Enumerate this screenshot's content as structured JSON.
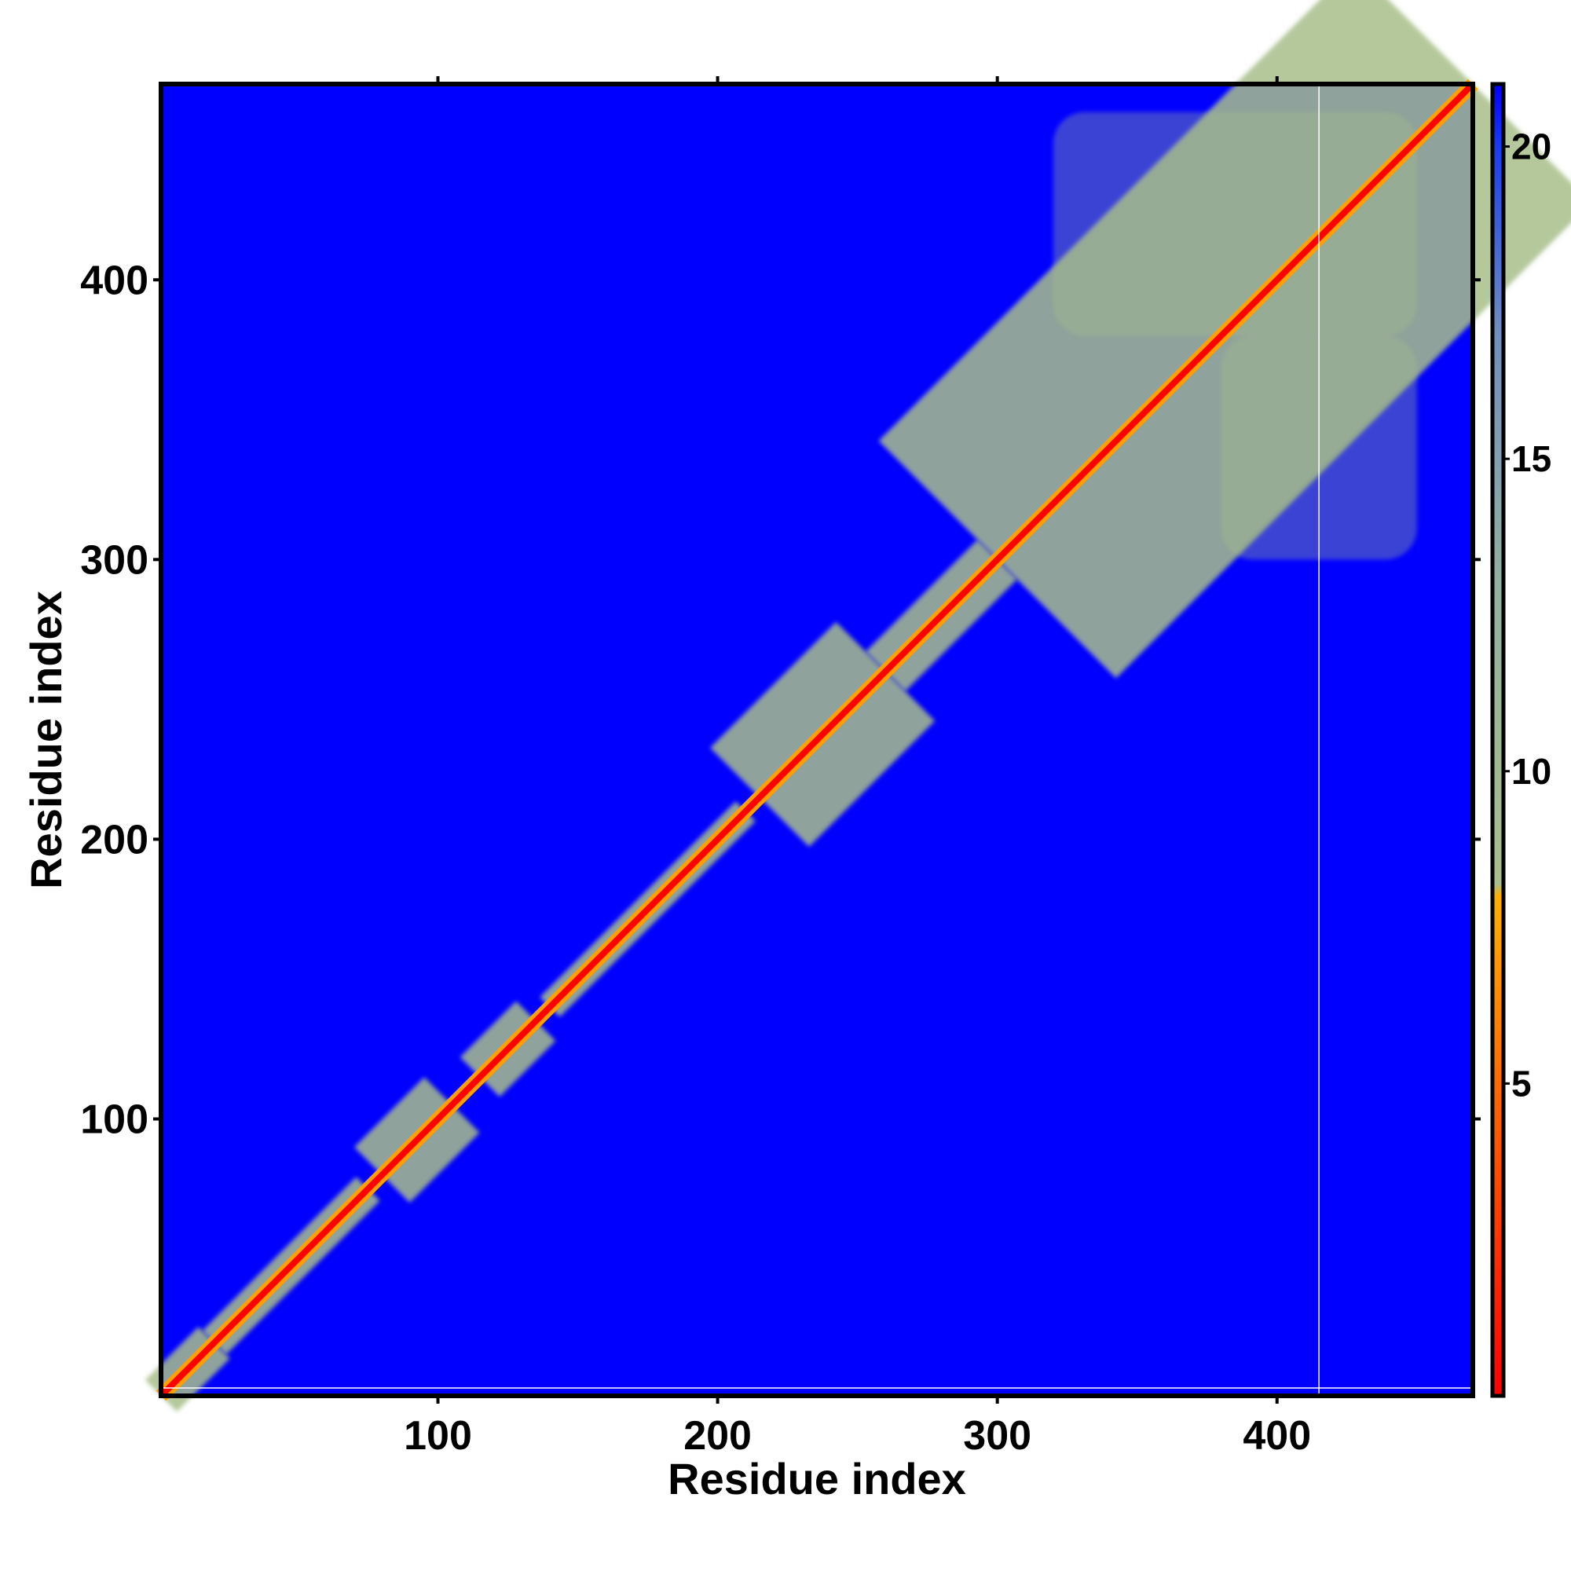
{
  "chart_data": {
    "type": "heatmap",
    "xlabel": "Residue index",
    "ylabel": "Residue index",
    "xlim": [
      1,
      470
    ],
    "ylim": [
      1,
      470
    ],
    "x_ticks": [
      100,
      200,
      300,
      400
    ],
    "y_ticks": [
      100,
      200,
      300,
      400
    ],
    "x_tick_labels": [
      "100",
      "200",
      "300",
      "400"
    ],
    "y_tick_labels": [
      "100",
      "200",
      "300",
      "400"
    ],
    "colorbar": {
      "range": [
        0,
        21
      ],
      "ticks": [
        5,
        10,
        15,
        20
      ],
      "tick_labels": [
        "5",
        "10",
        "15",
        "20"
      ],
      "stops": [
        {
          "value": 0,
          "color": "#ff0000"
        },
        {
          "value": 5,
          "color": "#ff6a00"
        },
        {
          "value": 8,
          "color": "#ffae00"
        },
        {
          "value": 8.2,
          "color": "#a8bf8a"
        },
        {
          "value": 13,
          "color": "#94b0a0"
        },
        {
          "value": 17,
          "color": "#6f8fbf"
        },
        {
          "value": 20,
          "color": "#1a3cf0"
        },
        {
          "value": 21,
          "color": "#0000ff"
        }
      ]
    },
    "background_color": "#0000ff",
    "diagonal_band": {
      "core_color": "#ff0000",
      "halo_color": "#ffa000",
      "contact_color": "#a8bf8a"
    },
    "contact_regions": [
      {
        "x": [
          1,
          20
        ],
        "y": [
          1,
          20
        ],
        "extent": 8
      },
      {
        "x": [
          20,
          75
        ],
        "y": [
          20,
          75
        ],
        "extent": 6
      },
      {
        "x": [
          80,
          105
        ],
        "y": [
          80,
          105
        ],
        "extent": 14
      },
      {
        "x": [
          115,
          135
        ],
        "y": [
          115,
          135
        ],
        "extent": 10
      },
      {
        "x": [
          140,
          210
        ],
        "y": [
          140,
          210
        ],
        "extent": 5
      },
      {
        "x": [
          215,
          260
        ],
        "y": [
          215,
          260
        ],
        "extent": 25
      },
      {
        "x": [
          260,
          300
        ],
        "y": [
          260,
          300
        ],
        "extent": 10
      },
      {
        "x": [
          300,
          470
        ],
        "y": [
          300,
          470
        ],
        "extent": 60
      },
      {
        "x": [
          320,
          450
        ],
        "y": [
          380,
          460
        ],
        "extent": 40
      },
      {
        "x": [
          380,
          450
        ],
        "y": [
          300,
          380
        ],
        "extent": 40
      }
    ],
    "reference_line_x": 415,
    "reference_line_y": 1
  }
}
